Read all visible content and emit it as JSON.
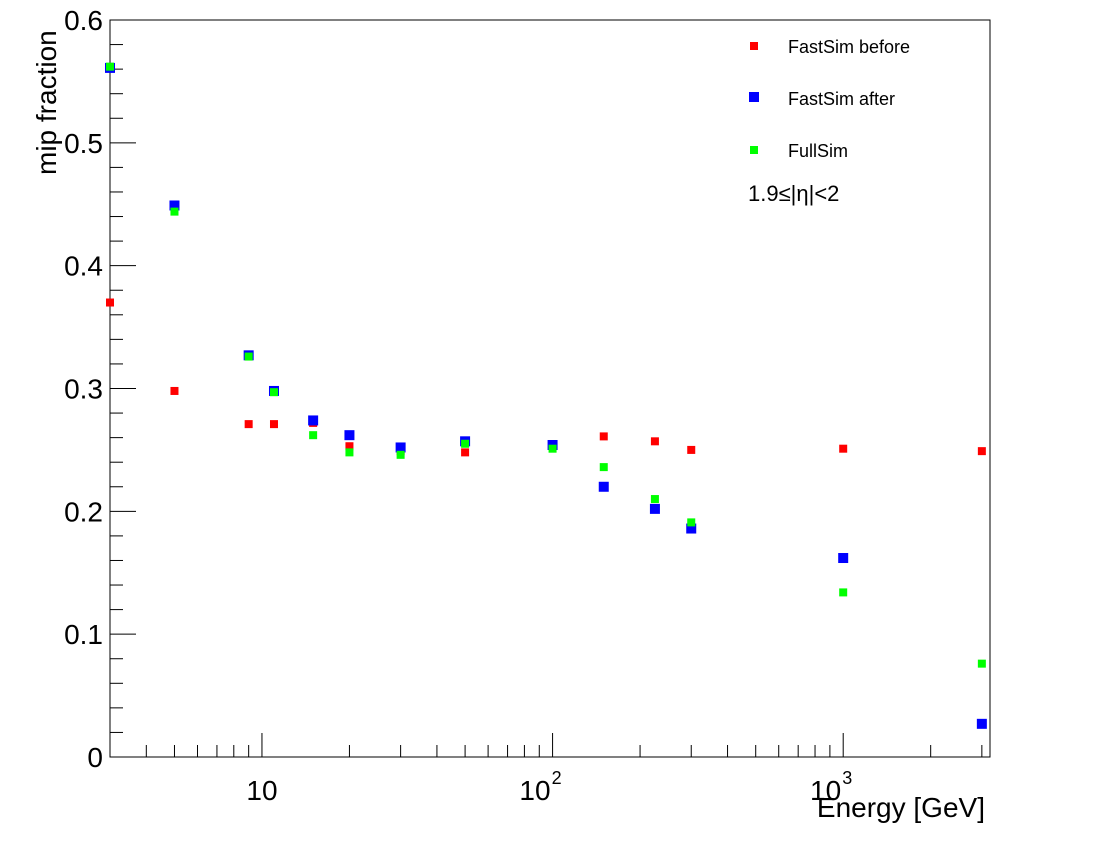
{
  "chart_data": {
    "type": "scatter",
    "xlabel": "Energy [GeV]",
    "ylabel": "mip fraction",
    "xscale": "log",
    "xlim": [
      3,
      3200
    ],
    "ylim": [
      0,
      0.6
    ],
    "legend_placement": "top-right",
    "annotation": "1.9≤|η|<2",
    "x_tick_labels": [
      {
        "value": 10,
        "base": "10",
        "exp": ""
      },
      {
        "value": 100,
        "base": "10",
        "exp": "2"
      },
      {
        "value": 1000,
        "base": "10",
        "exp": "3"
      }
    ],
    "y_ticks": [
      0,
      0.1,
      0.2,
      0.3,
      0.4,
      0.5,
      0.6
    ],
    "y_tick_labels": [
      "0",
      "0.1",
      "0.2",
      "0.3",
      "0.4",
      "0.5",
      "0.6"
    ],
    "series": [
      {
        "name": "FastSim before",
        "color": "#ff0000",
        "marker_size": 8,
        "x": [
          3,
          5,
          9,
          11,
          15,
          20,
          30,
          50,
          100,
          150,
          225,
          300,
          1000,
          3000
        ],
        "y": [
          0.37,
          0.298,
          0.271,
          0.271,
          0.272,
          0.253,
          0.249,
          0.248,
          0.254,
          0.261,
          0.257,
          0.25,
          0.251,
          0.249
        ]
      },
      {
        "name": "FastSim after",
        "color": "#0000ff",
        "marker_size": 10,
        "x": [
          3,
          5,
          9,
          11,
          15,
          20,
          30,
          50,
          100,
          150,
          225,
          300,
          1000,
          3000
        ],
        "y": [
          0.561,
          0.449,
          0.327,
          0.298,
          0.274,
          0.262,
          0.252,
          0.257,
          0.254,
          0.22,
          0.202,
          0.186,
          0.162,
          0.027
        ]
      },
      {
        "name": "FullSim",
        "color": "#00ff00",
        "marker_size": 8,
        "x": [
          3,
          5,
          9,
          11,
          15,
          20,
          30,
          50,
          100,
          150,
          225,
          300,
          1000,
          3000
        ],
        "y": [
          0.562,
          0.444,
          0.326,
          0.297,
          0.262,
          0.248,
          0.246,
          0.255,
          0.251,
          0.236,
          0.21,
          0.191,
          0.134,
          0.076
        ]
      }
    ]
  }
}
